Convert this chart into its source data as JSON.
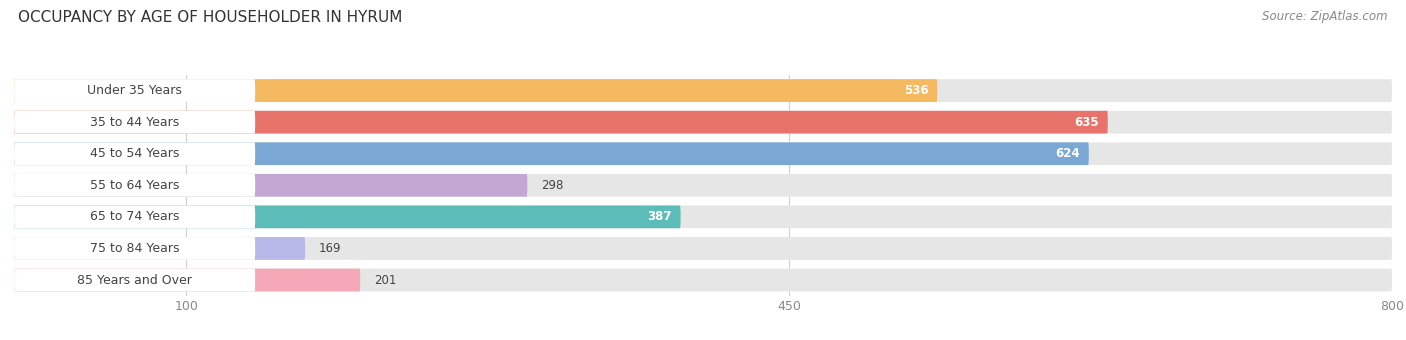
{
  "title": "OCCUPANCY BY AGE OF HOUSEHOLDER IN HYRUM",
  "source": "Source: ZipAtlas.com",
  "categories": [
    "Under 35 Years",
    "35 to 44 Years",
    "45 to 54 Years",
    "55 to 64 Years",
    "65 to 74 Years",
    "75 to 84 Years",
    "85 Years and Over"
  ],
  "values": [
    536,
    635,
    624,
    298,
    387,
    169,
    201
  ],
  "bar_colors": [
    "#f5b961",
    "#e8736a",
    "#7ba7d4",
    "#c4a8d4",
    "#5bbcb8",
    "#b8b8e8",
    "#f5a8b8"
  ],
  "xlim": [
    0,
    800
  ],
  "xticks": [
    100,
    450,
    800
  ],
  "bar_bg_color": "#e6e6e6",
  "white_label_color": "#ffffff",
  "title_fontsize": 11,
  "source_fontsize": 8.5,
  "label_fontsize": 9,
  "value_fontsize": 8.5,
  "value_threshold": 350
}
